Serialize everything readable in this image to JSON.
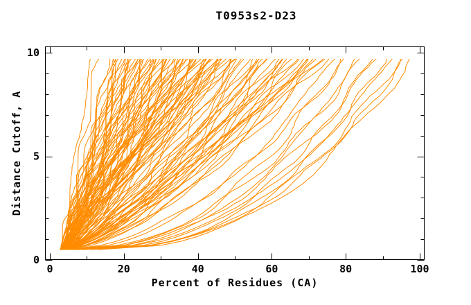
{
  "chart": {
    "title": "T0953s2-D23",
    "xlabel": "Percent of Residues (CA)",
    "ylabel": "Distance Cutoff, A"
  },
  "chart_data": {
    "type": "line",
    "title": "T0953s2-D23",
    "xlabel": "Percent of Residues (CA)",
    "ylabel": "Distance Cutoff, A",
    "xlim": [
      0,
      100
    ],
    "ylim": [
      0,
      10
    ],
    "x_major_ticks": [
      0,
      20,
      40,
      60,
      80,
      100
    ],
    "x_tick_labels": [
      "0",
      "20",
      "40",
      "60",
      "80",
      "100"
    ],
    "x_minor_step": 10,
    "y_major_ticks": [
      0,
      5,
      10
    ],
    "y_tick_labels": [
      "0",
      "5",
      "10"
    ],
    "y_minor_step": 1,
    "grid": false,
    "legend": "none",
    "line_color": "#ff8c00",
    "frame": "box-with-mirrored-inward-ticks",
    "curve_model": "x(y) = x_start + (x_end - x_start) * ((y - 0.5) / 9.35)^p ; one curve per predicted model, y = distance cutoff (A), x = percent of residues (CA) under cutoff",
    "y_start": 0.5,
    "y_end": 9.85,
    "sample_step": 0.2,
    "wobble_amplitude_pct": 1.0,
    "curves": [
      [
        4.0,
        11.5,
        1.3
      ],
      [
        4.4,
        13.0,
        1.18
      ],
      [
        3.6,
        16.2,
        1.05
      ],
      [
        3.0,
        17.0,
        0.95
      ],
      [
        4.2,
        17.5,
        1.15
      ],
      [
        2.7,
        17.9,
        0.8
      ],
      [
        4.8,
        18.4,
        1.05
      ],
      [
        3.6,
        18.8,
        0.9
      ],
      [
        2.9,
        19.3,
        1.25
      ],
      [
        4.5,
        19.7,
        0.85
      ],
      [
        3.3,
        20.2,
        1.1
      ],
      [
        5.1,
        20.6,
        0.75
      ],
      [
        3.9,
        21.1,
        1.0
      ],
      [
        3.0,
        21.5,
        0.95
      ],
      [
        4.2,
        22.0,
        1.15
      ],
      [
        2.7,
        22.4,
        0.8
      ],
      [
        4.8,
        22.9,
        1.05
      ],
      [
        3.6,
        23.3,
        0.9
      ],
      [
        2.9,
        23.8,
        1.25
      ],
      [
        4.5,
        24.2,
        0.85
      ],
      [
        3.3,
        24.7,
        1.1
      ],
      [
        5.1,
        25.1,
        0.75
      ],
      [
        3.9,
        25.6,
        1.0
      ],
      [
        3.0,
        26.0,
        0.95
      ],
      [
        4.2,
        26.5,
        1.15
      ],
      [
        2.7,
        26.9,
        0.8
      ],
      [
        4.8,
        27.4,
        1.05
      ],
      [
        3.6,
        27.8,
        0.9
      ],
      [
        2.9,
        28.3,
        1.25
      ],
      [
        4.5,
        28.7,
        0.85
      ],
      [
        3.3,
        29.2,
        1.1
      ],
      [
        5.1,
        29.6,
        0.75
      ],
      [
        3.9,
        30.1,
        1.0
      ],
      [
        3.0,
        30.5,
        0.95
      ],
      [
        4.2,
        31.0,
        1.15
      ],
      [
        2.7,
        31.4,
        0.8
      ],
      [
        4.8,
        31.9,
        1.05
      ],
      [
        3.6,
        32.3,
        0.9
      ],
      [
        2.9,
        32.8,
        1.25
      ],
      [
        4.5,
        33.2,
        0.85
      ],
      [
        3.3,
        33.7,
        1.1
      ],
      [
        5.1,
        34.1,
        0.75
      ],
      [
        3.9,
        34.6,
        1.0
      ],
      [
        3.0,
        35.0,
        0.95
      ],
      [
        4.2,
        35.5,
        1.15
      ],
      [
        2.7,
        35.9,
        0.8
      ],
      [
        4.8,
        36.4,
        1.05
      ],
      [
        3.6,
        36.8,
        0.9
      ],
      [
        2.9,
        37.3,
        1.25
      ],
      [
        4.5,
        37.7,
        0.85
      ],
      [
        3.3,
        38.2,
        1.1
      ],
      [
        5.1,
        38.6,
        0.75
      ],
      [
        3.9,
        39.1,
        1.0
      ],
      [
        3.0,
        39.5,
        0.95
      ],
      [
        4.2,
        40.0,
        1.15
      ],
      [
        2.7,
        40.4,
        0.8
      ],
      [
        4.8,
        40.9,
        1.05
      ],
      [
        3.6,
        41.3,
        0.9
      ],
      [
        2.9,
        41.8,
        1.25
      ],
      [
        4.5,
        42.2,
        0.85
      ],
      [
        3.3,
        42.7,
        1.1
      ],
      [
        5.1,
        43.1,
        0.75
      ],
      [
        3.9,
        43.6,
        1.0
      ],
      [
        3.0,
        44.0,
        0.95
      ],
      [
        4.2,
        44.5,
        1.15
      ],
      [
        2.7,
        44.9,
        0.8
      ],
      [
        4.8,
        45.4,
        1.05
      ],
      [
        3.6,
        45.8,
        0.9
      ],
      [
        2.9,
        46.3,
        1.25
      ],
      [
        4.5,
        46.7,
        0.85
      ],
      [
        3.3,
        47.2,
        1.1
      ],
      [
        5.1,
        47.6,
        0.75
      ],
      [
        3.9,
        48.1,
        1.0
      ],
      [
        3.0,
        48.5,
        0.95
      ],
      [
        4.2,
        49.0,
        1.15
      ],
      [
        2.7,
        49.4,
        0.8
      ],
      [
        4.8,
        49.9,
        1.05
      ],
      [
        3.6,
        50.3,
        0.9
      ],
      [
        3.5,
        51.0,
        0.7
      ],
      [
        4.6,
        51.9,
        0.85
      ],
      [
        2.8,
        52.7,
        0.6
      ],
      [
        5.2,
        53.6,
        0.9
      ],
      [
        3.9,
        54.4,
        0.65
      ],
      [
        4.3,
        55.3,
        0.78
      ],
      [
        3.5,
        56.1,
        0.58
      ],
      [
        4.6,
        57.0,
        0.8
      ],
      [
        2.8,
        57.8,
        0.7
      ],
      [
        5.2,
        58.7,
        0.85
      ],
      [
        3.9,
        59.5,
        0.6
      ],
      [
        4.3,
        60.4,
        0.9
      ],
      [
        3.5,
        61.2,
        0.65
      ],
      [
        4.6,
        62.1,
        0.78
      ],
      [
        2.8,
        62.9,
        0.58
      ],
      [
        5.2,
        63.8,
        0.8
      ],
      [
        3.9,
        64.6,
        0.7
      ],
      [
        4.3,
        65.5,
        0.85
      ],
      [
        3.5,
        66.3,
        0.6
      ],
      [
        4.6,
        67.2,
        0.9
      ],
      [
        2.8,
        68.0,
        0.65
      ],
      [
        5.2,
        68.9,
        0.78
      ],
      [
        3.9,
        69.7,
        0.58
      ],
      [
        4.3,
        70.6,
        0.8
      ],
      [
        3.5,
        71.4,
        0.7
      ],
      [
        4.6,
        72.3,
        0.85
      ],
      [
        2.8,
        73.1,
        0.6
      ],
      [
        5.2,
        74.0,
        0.9
      ],
      [
        3.9,
        74.8,
        0.65
      ],
      [
        4.3,
        75.7,
        0.78
      ],
      [
        5.0,
        77.0,
        0.5
      ],
      [
        6.5,
        79.0,
        0.44
      ],
      [
        4.2,
        81.0,
        0.55
      ],
      [
        7.0,
        83.0,
        0.42
      ],
      [
        5.5,
        85.0,
        0.48
      ],
      [
        8.0,
        87.0,
        0.4
      ],
      [
        6.0,
        89.0,
        0.46
      ],
      [
        9.0,
        91.0,
        0.4
      ],
      [
        6.8,
        93.0,
        0.44
      ],
      [
        11.0,
        95.0,
        0.42
      ],
      [
        7.5,
        96.5,
        0.4
      ],
      [
        13.0,
        98.0,
        0.42
      ]
    ]
  }
}
